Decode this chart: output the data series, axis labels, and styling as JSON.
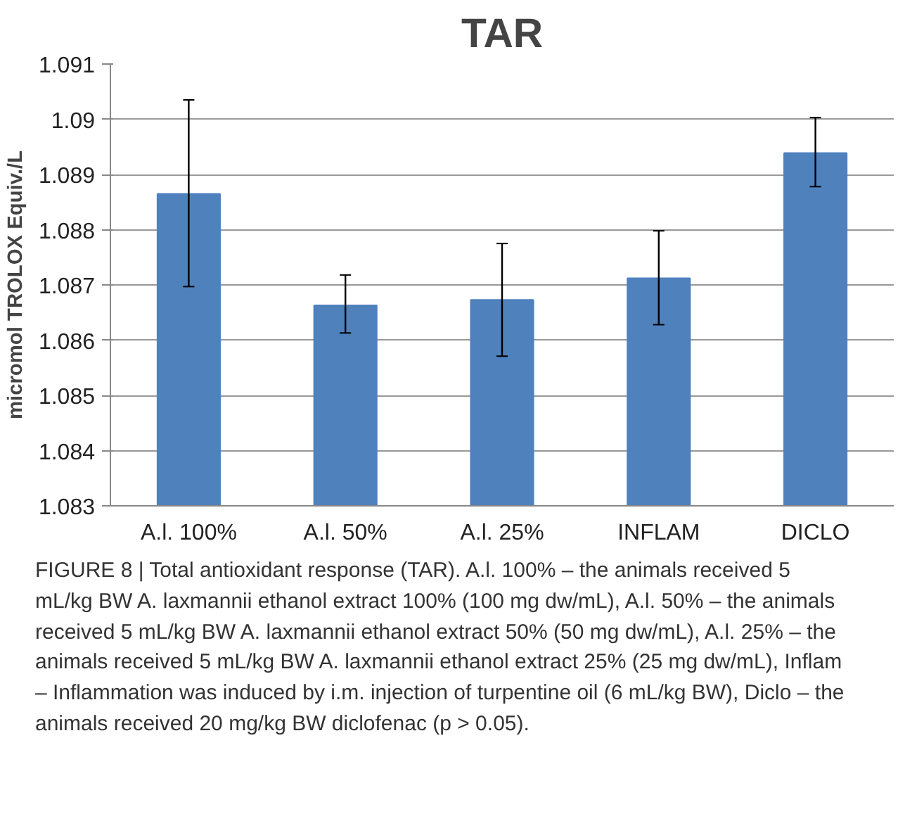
{
  "chart_data": {
    "type": "bar",
    "title": "TAR",
    "ylabel": "micromol TROLOX Equiv./L",
    "categories": [
      "A.l. 100%",
      "A.l. 50%",
      "A.l. 25%",
      "INFLAM",
      "DICLO"
    ],
    "values": [
      1.08865,
      1.08663,
      1.08673,
      1.08712,
      1.08939
    ],
    "errors": [
      [
        1.08697,
        1.09035
      ],
      [
        1.08613,
        1.08718
      ],
      [
        1.08571,
        1.08775
      ],
      [
        1.08628,
        1.08798
      ],
      [
        1.08878,
        1.09003
      ]
    ],
    "color": "#4f81bd",
    "ylim": [
      1.083,
      1.091
    ],
    "yticks": [
      1.083,
      1.084,
      1.085,
      1.086,
      1.087,
      1.088,
      1.089,
      {
        "value": 1.09,
        "label": "1.09"
      },
      1.091
    ],
    "grid": "y",
    "annotations": [
      "FIGURE 8 | Total antioxidant response (TAR). A.l. 100% – the animals received 5 mL/kg BW A. laxmannii ethanol extract 100% (100 mg dw/mL), A.l. 50% – the animals received 5 mL/kg BW A. laxmannii ethanol extract 50% (50 mg dw/mL), A.l. 25% – the animals received 5 mL/kg BW A. laxmannii ethanol extract 25% (25 mg dw/mL), Inflam – Inflammation was induced by i.m. injection of turpentine oil (6 mL/kg BW), Diclo – the animals received 20 mg/kg BW diclofenac (p > 0.05)."
    ]
  }
}
